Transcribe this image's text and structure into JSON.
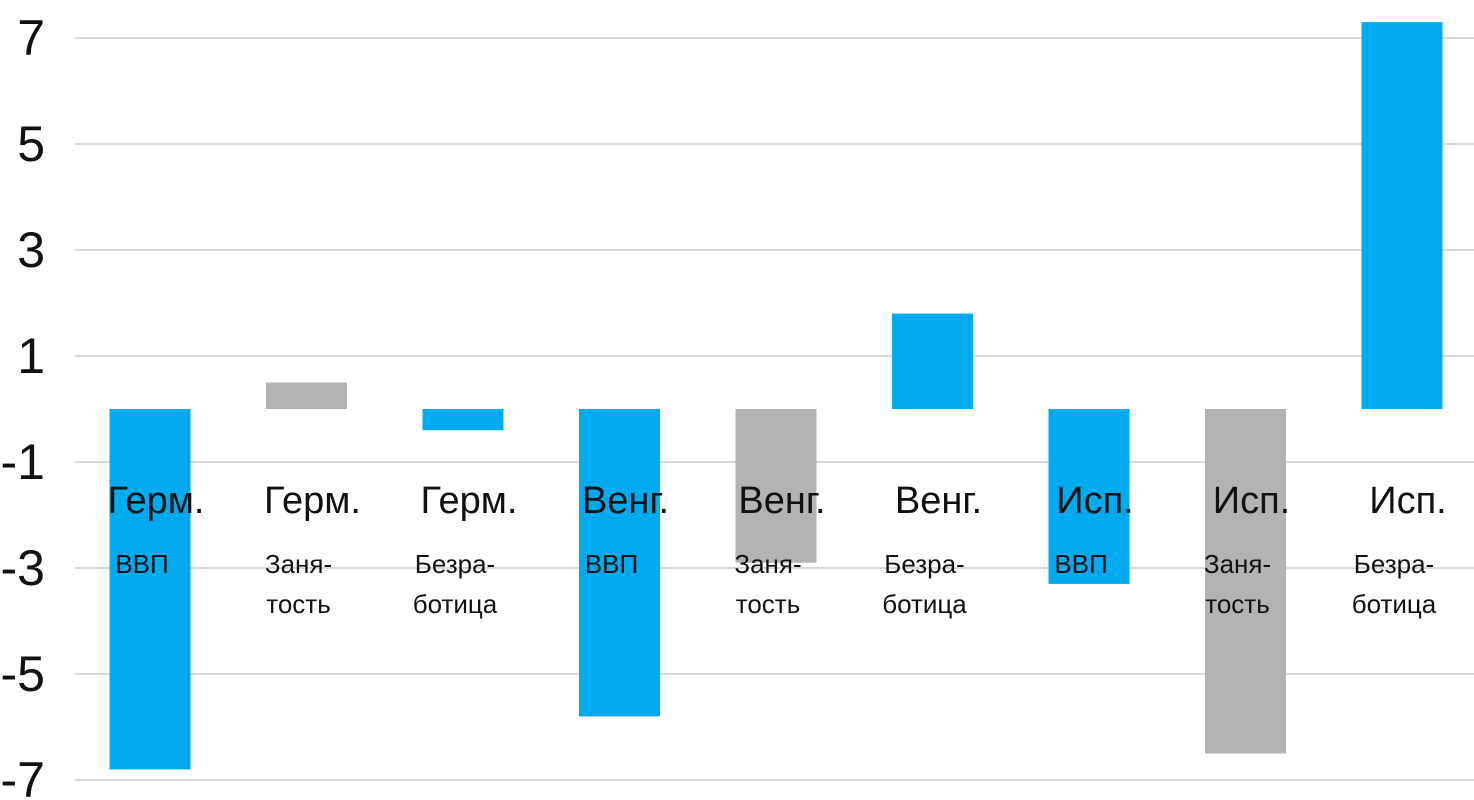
{
  "chart_data": {
    "type": "bar",
    "categories": [
      {
        "top": "Герм.",
        "sub": [
          "ВВП"
        ]
      },
      {
        "top": "Герм.",
        "sub": [
          "Заня-",
          "тость"
        ]
      },
      {
        "top": "Герм.",
        "sub": [
          "Безра-",
          "ботица"
        ]
      },
      {
        "top": "Венг.",
        "sub": [
          "ВВП"
        ]
      },
      {
        "top": "Венг.",
        "sub": [
          "Заня-",
          "тость"
        ]
      },
      {
        "top": "Венг.",
        "sub": [
          "Безра-",
          "ботица"
        ]
      },
      {
        "top": "Исп.",
        "sub": [
          "ВВП"
        ]
      },
      {
        "top": "Исп.",
        "sub": [
          "Заня-",
          "тость"
        ]
      },
      {
        "top": "Исп.",
        "sub": [
          "Безра-",
          "ботица"
        ]
      }
    ],
    "values": [
      -6.8,
      0.5,
      -0.4,
      -5.8,
      -2.9,
      1.8,
      -3.3,
      -6.5,
      7.3
    ],
    "bar_colors": [
      "#00aaee",
      "#b3b3b3",
      "#00aaee",
      "#00aaee",
      "#b3b3b3",
      "#00aaee",
      "#00aaee",
      "#b3b3b3",
      "#00aaee"
    ],
    "yticks": [
      7,
      5,
      3,
      1,
      -1,
      -3,
      -5,
      -7
    ],
    "ylim": [
      -7,
      7.5
    ],
    "grid": true,
    "gridline_color": "#d9d9d9"
  }
}
